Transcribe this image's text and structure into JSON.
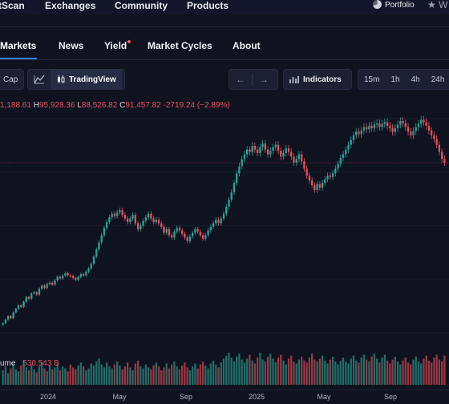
{
  "topnav": {
    "items": [
      "tScan",
      "Exchanges",
      "Community",
      "Products"
    ],
    "portfolio_label": "Portfolio",
    "star_label": "★ W"
  },
  "tabs": [
    {
      "label": "Markets",
      "active": true
    },
    {
      "label": "News"
    },
    {
      "label": "Yield",
      "badge": true
    },
    {
      "label": "Market Cycles"
    },
    {
      "label": "About"
    }
  ],
  "toolbar": {
    "cap_label": "Cap",
    "line_icon": "line-chart-icon",
    "tradingview_label": "TradingView",
    "undo_icon": "←",
    "redo_icon": "→",
    "indicators_label": "Indicators",
    "timeframes": [
      "15m",
      "1h",
      "4h",
      "24h"
    ]
  },
  "ohlc": {
    "open": "1,188.61",
    "high_prefix": "H",
    "high": "95,928.36",
    "low_prefix": "L",
    "low": "88,526.82",
    "close_prefix": "C",
    "close": "91,457.82",
    "change": "-2719.24 (−2.89%)"
  },
  "volume": {
    "label": "ume",
    "value": "530.543 B"
  },
  "colors": {
    "up": "#26a69a",
    "down": "#ef4e5c",
    "accent": "#3f7bff"
  },
  "chart_data": {
    "type": "candlestick",
    "x_ticks": [
      "2024",
      "May",
      "Sep",
      "2025",
      "May",
      "Sep"
    ],
    "y_range": [
      20000,
      110000
    ],
    "reference_price": 91457.82,
    "series": [
      {
        "name": "Price",
        "closes": [
          24000,
          25500,
          27000,
          26000,
          28500,
          30000,
          31500,
          30800,
          33000,
          35000,
          34200,
          36500,
          37000,
          36000,
          38500,
          39800,
          38800,
          40500,
          41000,
          40200,
          42000,
          43500,
          42800,
          44000,
          45000,
          44200,
          43800,
          43000,
          42200,
          43400,
          44600,
          44000,
          45600,
          47000,
          49000,
          52000,
          55000,
          58000,
          61000,
          64000,
          66500,
          68500,
          70000,
          69000,
          70500,
          71500,
          69500,
          68000,
          66500,
          68000,
          69500,
          66000,
          63500,
          65000,
          67000,
          68500,
          70000,
          68000,
          66500,
          67500,
          66000,
          64500,
          62000,
          63500,
          61000,
          60000,
          62500,
          64000,
          63000,
          61500,
          60000,
          58500,
          60500,
          62000,
          63500,
          62500,
          61000,
          59500,
          61000,
          63000,
          64500,
          66000,
          67500,
          66000,
          68000,
          70000,
          73000,
          76000,
          79000,
          83000,
          87000,
          90000,
          93000,
          95000,
          97000,
          96000,
          98500,
          97000,
          95500,
          98000,
          99500,
          97000,
          95000,
          96500,
          98000,
          99000,
          96500,
          94000,
          95500,
          97500,
          96000,
          94000,
          91500,
          93000,
          95000,
          92000,
          89000,
          86000,
          84000,
          82000,
          80000,
          82500,
          81000,
          83000,
          84500,
          86000,
          85500,
          87000,
          89000,
          91000,
          93500,
          95000,
          97000,
          99000,
          101000,
          103000,
          104500,
          103500,
          105000,
          106500,
          105500,
          107000,
          106000,
          107500,
          108000,
          106500,
          107800,
          108500,
          107000,
          106000,
          104500,
          106000,
          107500,
          109000,
          108000,
          106500,
          104500,
          103000,
          104800,
          106500,
          107800,
          109500,
          108500,
          107000,
          105000,
          103000,
          101500,
          99000,
          96000,
          93000,
          91457.82
        ]
      },
      {
        "name": "Volume",
        "values": [
          18,
          22,
          15,
          20,
          25,
          19,
          17,
          23,
          28,
          21,
          18,
          24,
          19,
          16,
          22,
          26,
          20,
          17,
          23,
          19,
          21,
          25,
          18,
          22,
          20,
          17,
          24,
          21,
          19,
          23,
          26,
          22,
          18,
          20,
          25,
          23,
          27,
          30,
          24,
          21,
          26,
          22,
          20,
          24,
          27,
          23,
          19,
          22,
          26,
          21,
          18,
          25,
          28,
          22,
          20,
          24,
          21,
          19,
          23,
          26,
          22,
          18,
          21,
          25,
          20,
          24,
          27,
          22,
          19,
          23,
          26,
          21,
          18,
          22,
          25,
          20,
          24,
          27,
          23,
          20,
          25,
          28,
          24,
          21,
          26,
          30,
          33,
          36,
          31,
          27,
          32,
          35,
          29,
          26,
          30,
          34,
          28,
          25,
          31,
          36,
          29,
          27,
          32,
          35,
          30,
          26,
          31,
          34,
          28,
          24,
          30,
          33,
          27,
          25,
          29,
          32,
          28,
          26,
          31,
          35,
          29,
          27,
          30,
          33,
          28,
          25,
          29,
          32,
          27,
          24,
          28,
          31,
          27,
          25,
          30,
          33,
          28,
          26,
          31,
          34,
          29,
          27,
          32,
          35,
          30,
          26,
          31,
          34,
          28,
          25,
          29,
          32,
          27,
          24,
          28,
          31,
          26,
          24,
          29,
          32,
          27,
          25,
          30,
          33,
          28,
          26,
          31,
          34,
          29,
          27,
          33
        ]
      }
    ]
  }
}
